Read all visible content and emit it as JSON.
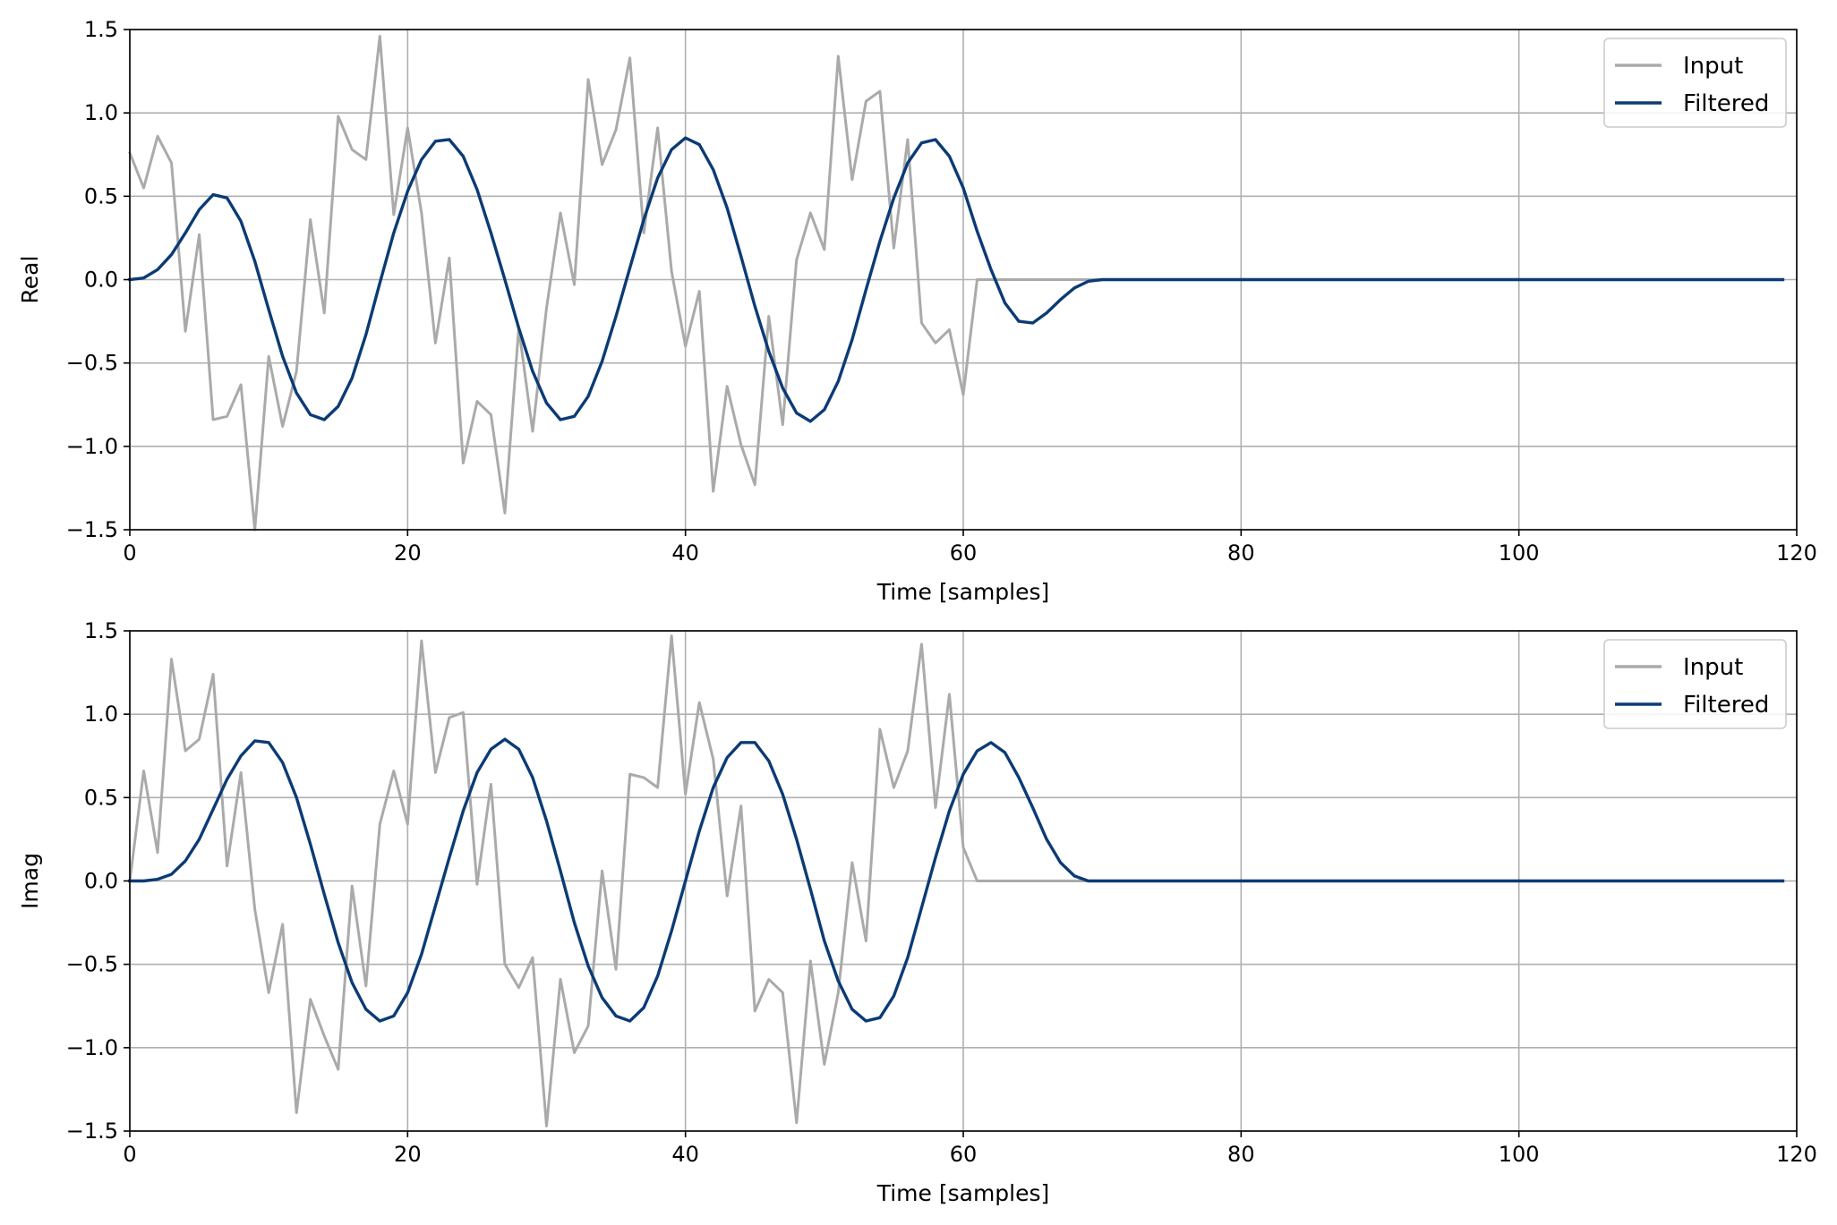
{
  "colors": {
    "input": "#aaaaaa",
    "filtered": "#0b3b75",
    "grid": "#b0b0b0",
    "axes": "#000000",
    "legend_border": "#cccccc"
  },
  "chart_data": [
    {
      "type": "line",
      "xlabel": "Time [samples]",
      "ylabel": "Real",
      "xlim": [
        0,
        120
      ],
      "ylim": [
        -1.5,
        1.5
      ],
      "xticks": [
        0,
        20,
        40,
        60,
        80,
        100,
        120
      ],
      "yticks": [
        -1.5,
        -1.0,
        -0.5,
        0.0,
        0.5,
        1.0,
        1.5
      ],
      "xtick_labels": [
        "0",
        "20",
        "40",
        "60",
        "80",
        "100",
        "120"
      ],
      "ytick_labels": [
        "−1.5",
        "−1.0",
        "−0.5",
        "0.0",
        "0.5",
        "1.0",
        "1.5"
      ],
      "grid": true,
      "legend": "top-right",
      "series": [
        {
          "name": "Input",
          "values": [
            0.76,
            0.55,
            0.86,
            0.7,
            -0.31,
            0.27,
            -0.84,
            -0.82,
            -0.63,
            -1.5,
            -0.46,
            -0.88,
            -0.55,
            0.36,
            -0.2,
            0.98,
            0.78,
            0.72,
            1.46,
            0.39,
            0.91,
            0.4,
            -0.38,
            0.13,
            -1.1,
            -0.73,
            -0.81,
            -1.4,
            -0.29,
            -0.91,
            -0.17,
            0.4,
            -0.03,
            1.2,
            0.69,
            0.9,
            1.33,
            0.28,
            0.91,
            0.05,
            -0.4,
            -0.07,
            -1.27,
            -0.64,
            -0.99,
            -1.23,
            -0.22,
            -0.87,
            0.12,
            0.4,
            0.18,
            1.34,
            0.6,
            1.07,
            1.13,
            0.19,
            0.84,
            -0.26,
            -0.38,
            -0.3,
            -0.69,
            0.0,
            0.0,
            0.0,
            0.0,
            0.0,
            0.0,
            0.0,
            0.0,
            0.0,
            0.0,
            0.0,
            0.0,
            0.0,
            0.0,
            0.0,
            0.0,
            0.0,
            0.0,
            0.0,
            0.0,
            0.0,
            0.0,
            0.0,
            0.0,
            0.0,
            0.0,
            0.0,
            0.0,
            0.0,
            0.0,
            0.0,
            0.0,
            0.0,
            0.0,
            0.0,
            0.0,
            0.0,
            0.0,
            0.0,
            0.0,
            0.0,
            0.0,
            0.0,
            0.0,
            0.0,
            0.0,
            0.0,
            0.0,
            0.0,
            0.0,
            0.0,
            0.0,
            0.0,
            0.0,
            0.0,
            0.0,
            0.0,
            0.0,
            0.0
          ]
        },
        {
          "name": "Filtered",
          "values": [
            0.0,
            0.01,
            0.06,
            0.15,
            0.28,
            0.42,
            0.51,
            0.49,
            0.35,
            0.11,
            -0.18,
            -0.46,
            -0.68,
            -0.81,
            -0.84,
            -0.76,
            -0.59,
            -0.33,
            -0.02,
            0.28,
            0.53,
            0.72,
            0.83,
            0.84,
            0.74,
            0.54,
            0.28,
            0.0,
            -0.29,
            -0.55,
            -0.74,
            -0.84,
            -0.82,
            -0.7,
            -0.49,
            -0.22,
            0.07,
            0.36,
            0.61,
            0.78,
            0.85,
            0.81,
            0.66,
            0.43,
            0.14,
            -0.16,
            -0.43,
            -0.65,
            -0.8,
            -0.85,
            -0.78,
            -0.61,
            -0.36,
            -0.06,
            0.23,
            0.49,
            0.7,
            0.82,
            0.84,
            0.74,
            0.55,
            0.29,
            0.06,
            -0.14,
            -0.25,
            -0.26,
            -0.2,
            -0.12,
            -0.05,
            -0.01,
            0.0,
            0.0,
            0.0,
            0.0,
            0.0,
            0.0,
            0.0,
            0.0,
            0.0,
            0.0,
            0.0,
            0.0,
            0.0,
            0.0,
            0.0,
            0.0,
            0.0,
            0.0,
            0.0,
            0.0,
            0.0,
            0.0,
            0.0,
            0.0,
            0.0,
            0.0,
            0.0,
            0.0,
            0.0,
            0.0,
            0.0,
            0.0,
            0.0,
            0.0,
            0.0,
            0.0,
            0.0,
            0.0,
            0.0,
            0.0,
            0.0,
            0.0,
            0.0,
            0.0,
            0.0,
            0.0,
            0.0,
            0.0,
            0.0,
            0.0
          ]
        }
      ]
    },
    {
      "type": "line",
      "xlabel": "Time [samples]",
      "ylabel": "Imag",
      "xlim": [
        0,
        120
      ],
      "ylim": [
        -1.5,
        1.5
      ],
      "xticks": [
        0,
        20,
        40,
        60,
        80,
        100,
        120
      ],
      "yticks": [
        -1.5,
        -1.0,
        -0.5,
        0.0,
        0.5,
        1.0,
        1.5
      ],
      "xtick_labels": [
        "0",
        "20",
        "40",
        "60",
        "80",
        "100",
        "120"
      ],
      "ytick_labels": [
        "−1.5",
        "−1.0",
        "−0.5",
        "0.0",
        "0.5",
        "1.0",
        "1.5"
      ],
      "grid": true,
      "legend": "top-right",
      "series": [
        {
          "name": "Input",
          "values": [
            0.0,
            0.66,
            0.17,
            1.33,
            0.78,
            0.85,
            1.24,
            0.09,
            0.65,
            -0.17,
            -0.67,
            -0.26,
            -1.39,
            -0.71,
            -0.93,
            -1.13,
            -0.03,
            -0.63,
            0.34,
            0.66,
            0.34,
            1.44,
            0.65,
            0.98,
            1.01,
            -0.02,
            0.58,
            -0.5,
            -0.64,
            -0.46,
            -1.47,
            -0.59,
            -1.03,
            -0.87,
            0.06,
            -0.53,
            0.64,
            0.62,
            0.56,
            1.47,
            0.52,
            1.07,
            0.73,
            -0.09,
            0.45,
            -0.78,
            -0.59,
            -0.67,
            -1.45,
            -0.48,
            -1.1,
            -0.67,
            0.11,
            -0.36,
            0.91,
            0.56,
            0.78,
            1.42,
            0.44,
            1.12,
            0.2,
            0.0,
            0.0,
            0.0,
            0.0,
            0.0,
            0.0,
            0.0,
            0.0,
            0.0,
            0.0,
            0.0,
            0.0,
            0.0,
            0.0,
            0.0,
            0.0,
            0.0,
            0.0,
            0.0,
            0.0,
            0.0,
            0.0,
            0.0,
            0.0,
            0.0,
            0.0,
            0.0,
            0.0,
            0.0,
            0.0,
            0.0,
            0.0,
            0.0,
            0.0,
            0.0,
            0.0,
            0.0,
            0.0,
            0.0,
            0.0,
            0.0,
            0.0,
            0.0,
            0.0,
            0.0,
            0.0,
            0.0,
            0.0,
            0.0,
            0.0,
            0.0,
            0.0,
            0.0,
            0.0,
            0.0,
            0.0,
            0.0,
            0.0,
            0.0
          ]
        },
        {
          "name": "Filtered",
          "values": [
            0.0,
            0.0,
            0.01,
            0.04,
            0.12,
            0.25,
            0.43,
            0.61,
            0.75,
            0.84,
            0.83,
            0.71,
            0.5,
            0.22,
            -0.08,
            -0.37,
            -0.61,
            -0.77,
            -0.84,
            -0.81,
            -0.67,
            -0.44,
            -0.15,
            0.14,
            0.42,
            0.65,
            0.79,
            0.85,
            0.79,
            0.62,
            0.36,
            0.06,
            -0.25,
            -0.51,
            -0.7,
            -0.81,
            -0.84,
            -0.76,
            -0.57,
            -0.3,
            0.0,
            0.3,
            0.56,
            0.74,
            0.83,
            0.83,
            0.72,
            0.52,
            0.25,
            -0.05,
            -0.36,
            -0.6,
            -0.77,
            -0.84,
            -0.82,
            -0.69,
            -0.46,
            -0.16,
            0.14,
            0.42,
            0.64,
            0.78,
            0.83,
            0.77,
            0.62,
            0.44,
            0.25,
            0.11,
            0.03,
            0.0,
            0.0,
            0.0,
            0.0,
            0.0,
            0.0,
            0.0,
            0.0,
            0.0,
            0.0,
            0.0,
            0.0,
            0.0,
            0.0,
            0.0,
            0.0,
            0.0,
            0.0,
            0.0,
            0.0,
            0.0,
            0.0,
            0.0,
            0.0,
            0.0,
            0.0,
            0.0,
            0.0,
            0.0,
            0.0,
            0.0,
            0.0,
            0.0,
            0.0,
            0.0,
            0.0,
            0.0,
            0.0,
            0.0,
            0.0,
            0.0,
            0.0,
            0.0,
            0.0,
            0.0,
            0.0,
            0.0,
            0.0,
            0.0,
            0.0,
            0.0
          ]
        }
      ]
    }
  ]
}
